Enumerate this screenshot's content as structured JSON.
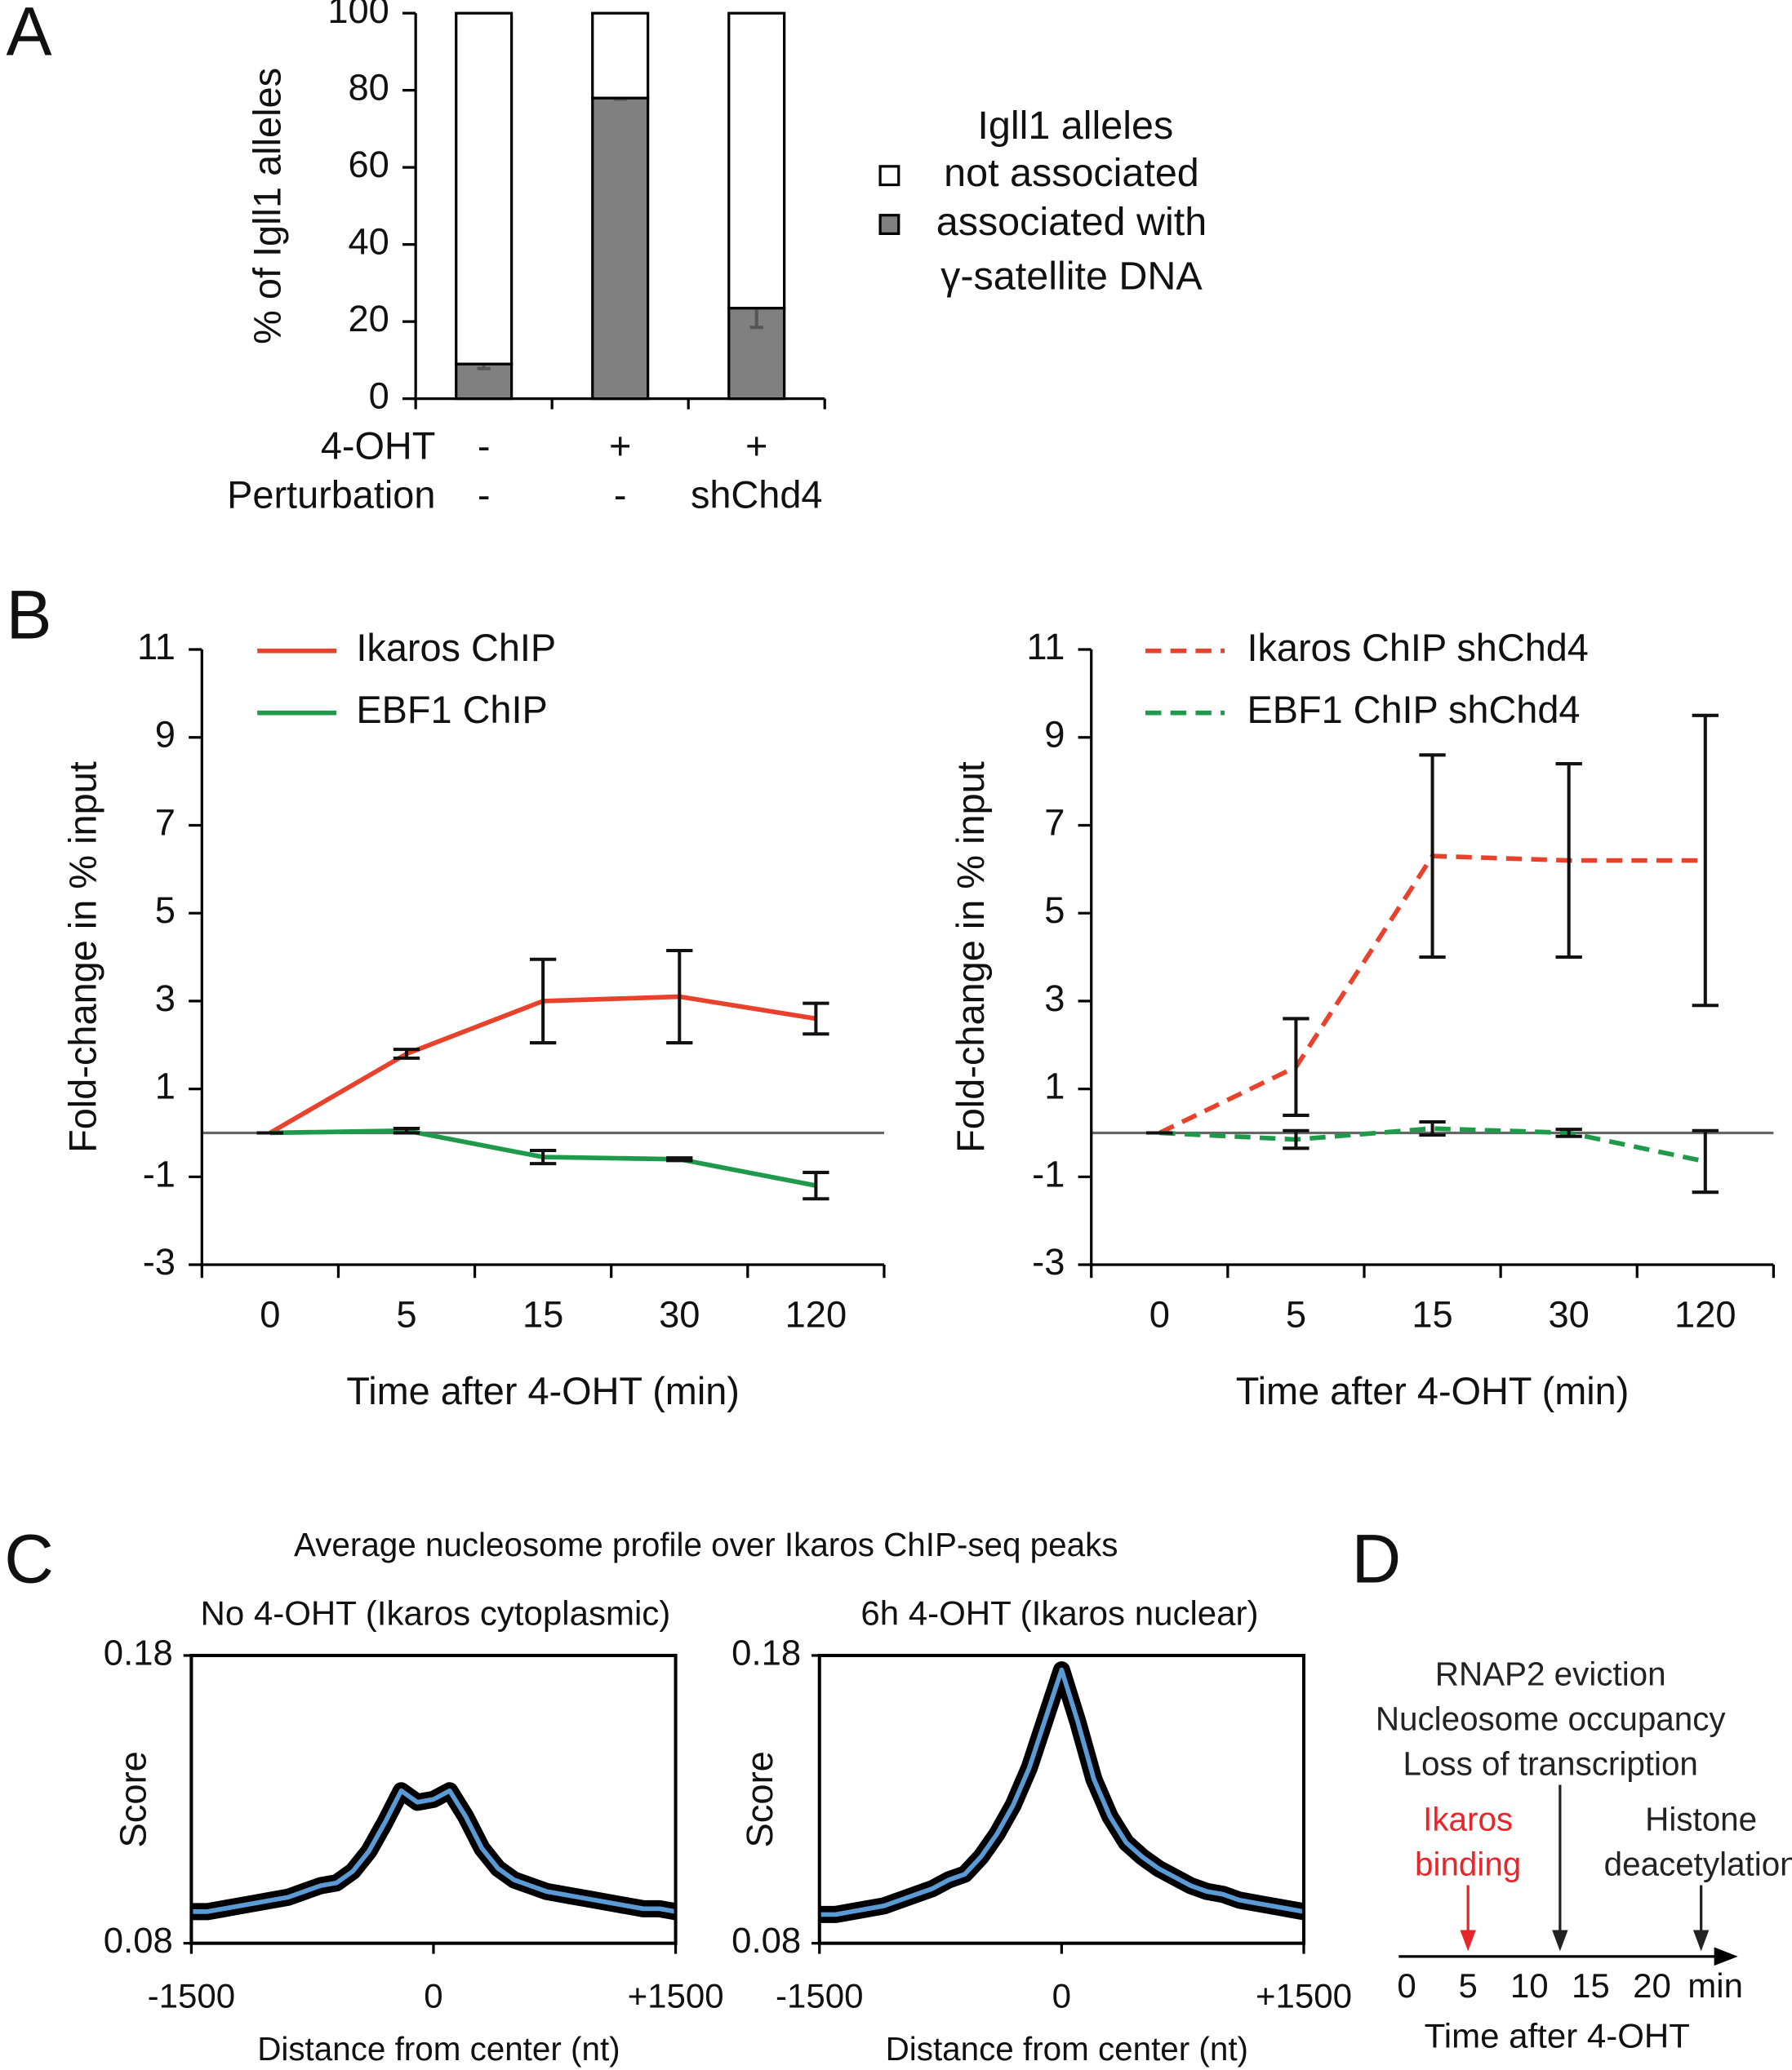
{
  "chart_data": [
    {
      "type": "stacked_bar",
      "panel": "A",
      "ylabel": "% of Igll1 alleles",
      "ylim": [
        0,
        100
      ],
      "yticks": [
        0,
        20,
        40,
        60,
        80,
        100
      ],
      "category_rows": [
        {
          "label": "4-OHT",
          "values": [
            "-",
            "+",
            "+"
          ]
        },
        {
          "label": "Perturbation",
          "values": [
            "-",
            "-",
            "shChd4"
          ]
        }
      ],
      "legend_title": "Igll1 alleles",
      "series": [
        {
          "name": "not associated",
          "color": "#ffffff",
          "values": [
            91,
            22,
            76.5
          ]
        },
        {
          "name": "associated with\nγ-satellite DNA",
          "color": "#808080",
          "values": [
            9,
            78,
            23.5
          ],
          "errors": [
            1.2,
            0.3,
            5
          ]
        }
      ]
    },
    {
      "type": "line",
      "panel": "B",
      "categories": [
        "0",
        "5",
        "15",
        "30",
        "120"
      ],
      "xlabel": "Time after 4-OHT (min)",
      "ylabel": "Fold-change in % input",
      "ylim": [
        -3,
        11
      ],
      "yticks": [
        -3,
        -1,
        1,
        3,
        5,
        7,
        9,
        11
      ],
      "series": [
        {
          "name": "Ikaros ChIP",
          "color": "#e8412c",
          "dashed": false,
          "values": [
            0,
            1.8,
            3.0,
            3.1,
            2.6
          ],
          "errors": [
            0,
            0.1,
            0.95,
            1.05,
            0.35
          ]
        },
        {
          "name": "EBF1 ChIP",
          "color": "#1e9a4a",
          "dashed": false,
          "values": [
            0,
            0.05,
            -0.55,
            -0.6,
            -1.2
          ],
          "errors": [
            0,
            0.05,
            0.15,
            0.03,
            0.3
          ]
        }
      ]
    },
    {
      "type": "line",
      "categories": [
        "0",
        "5",
        "15",
        "30",
        "120"
      ],
      "xlabel": "Time after 4-OHT (min)",
      "ylabel": "Fold-change in % input",
      "ylim": [
        -3,
        11
      ],
      "yticks": [
        -3,
        -1,
        1,
        3,
        5,
        7,
        9,
        11
      ],
      "series": [
        {
          "name": "Ikaros ChIP shChd4",
          "color": "#e8412c",
          "dashed": true,
          "values": [
            0,
            1.5,
            6.3,
            6.2,
            6.2
          ],
          "errors": [
            0,
            1.1,
            2.3,
            2.2,
            3.3
          ]
        },
        {
          "name": "EBF1 ChIP shChd4",
          "color": "#1e9a4a",
          "dashed": true,
          "values": [
            0,
            -0.15,
            0.1,
            0,
            -0.65
          ],
          "errors": [
            0,
            0.2,
            0.15,
            0.08,
            0.7
          ]
        }
      ]
    },
    {
      "type": "profile",
      "panel": "C",
      "title": "Average nucleosome profile over Ikaros ChIP-seq peaks",
      "subtitle": "No 4-OHT (Ikaros cytoplasmic)",
      "xlabel": "Distance from center (nt)",
      "ylabel": "Score",
      "xlim": [
        -1500,
        1500
      ],
      "xticks": [
        -1500,
        0,
        {
          "value": 1500,
          "label": "+1500"
        }
      ],
      "ylim": [
        0.08,
        0.18
      ],
      "yticks": [
        0.08,
        0.18
      ],
      "x": [
        -1500,
        -1400,
        -1300,
        -1200,
        -1100,
        -1000,
        -900,
        -800,
        -700,
        -600,
        -500,
        -400,
        -300,
        -200,
        -100,
        0,
        100,
        200,
        300,
        400,
        500,
        600,
        700,
        800,
        900,
        1000,
        1100,
        1200,
        1300,
        1400,
        1500
      ],
      "series": [
        {
          "color": "#5b9bd5",
          "band_color": "#000000",
          "values": [
            0.091,
            0.091,
            0.092,
            0.093,
            0.094,
            0.095,
            0.096,
            0.098,
            0.1,
            0.101,
            0.105,
            0.112,
            0.122,
            0.133,
            0.129,
            0.13,
            0.133,
            0.124,
            0.113,
            0.106,
            0.102,
            0.1,
            0.098,
            0.097,
            0.096,
            0.095,
            0.094,
            0.093,
            0.092,
            0.092,
            0.091
          ]
        }
      ]
    },
    {
      "type": "profile",
      "subtitle": "6h 4-OHT (Ikaros nuclear)",
      "xlabel": "Distance from center (nt)",
      "ylabel": "Score",
      "xlim": [
        -1500,
        1500
      ],
      "xticks": [
        -1500,
        0,
        {
          "value": 1500,
          "label": "+1500"
        }
      ],
      "ylim": [
        0.08,
        0.18
      ],
      "yticks": [
        0.08,
        0.18
      ],
      "x": [
        -1500,
        -1400,
        -1300,
        -1200,
        -1100,
        -1000,
        -900,
        -800,
        -700,
        -600,
        -500,
        -400,
        -300,
        -200,
        -100,
        0,
        100,
        200,
        300,
        400,
        500,
        600,
        700,
        800,
        900,
        1000,
        1100,
        1200,
        1300,
        1400,
        1500
      ],
      "series": [
        {
          "color": "#5b9bd5",
          "band_color": "#000000",
          "values": [
            0.09,
            0.09,
            0.091,
            0.092,
            0.093,
            0.095,
            0.097,
            0.099,
            0.102,
            0.104,
            0.11,
            0.118,
            0.128,
            0.141,
            0.158,
            0.175,
            0.157,
            0.137,
            0.124,
            0.115,
            0.11,
            0.106,
            0.103,
            0.1,
            0.098,
            0.097,
            0.095,
            0.094,
            0.093,
            0.092,
            0.091
          ]
        }
      ]
    },
    {
      "type": "timeline",
      "panel": "D",
      "xlim": [
        0,
        27
      ],
      "xticks": [
        0,
        5,
        10,
        15,
        20
      ],
      "unit": "min",
      "xlabel": "Time after 4-OHT",
      "events": [
        {
          "lines": [
            "RNAP2 eviction",
            "Nucleosome occupancy",
            "Loss of transcription"
          ],
          "x": 12.5,
          "color": "#222222"
        },
        {
          "lines": [
            "Ikaros",
            "binding"
          ],
          "x": 5,
          "color": "#e8262a"
        },
        {
          "lines": [
            "Histone",
            "deacetylation"
          ],
          "x": 24,
          "color": "#222222"
        }
      ]
    }
  ]
}
